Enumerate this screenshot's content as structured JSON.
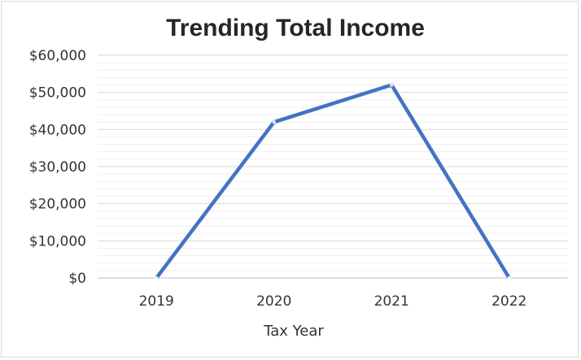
{
  "chart_data": {
    "type": "line",
    "title": "Trending Total Income",
    "xlabel": "Tax Year",
    "ylabel": "",
    "categories": [
      "2019",
      "2020",
      "2021",
      "2022"
    ],
    "series": [
      {
        "values": [
          0,
          42000,
          52000,
          0
        ]
      }
    ],
    "ylim": [
      0,
      60000
    ],
    "y_ticks": [
      0,
      10000,
      20000,
      30000,
      40000,
      50000,
      60000
    ],
    "y_tick_labels": [
      "$0",
      "$10,000",
      "$20,000",
      "$30,000",
      "$40,000",
      "$50,000",
      "$60,000"
    ],
    "grid": true,
    "legend": "none",
    "colors": {
      "line": "#4472c4",
      "grid_major": "#d9d9d9",
      "grid_minor": "#efefef",
      "text": "#333333"
    }
  }
}
